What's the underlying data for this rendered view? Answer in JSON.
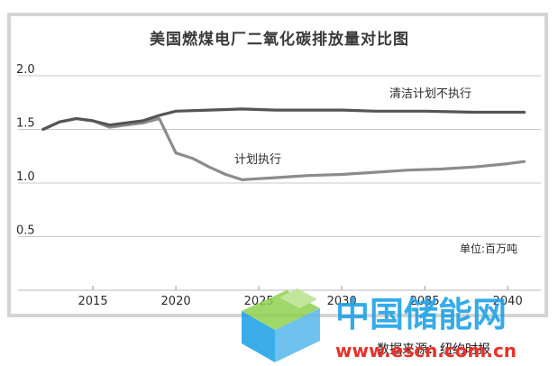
{
  "chart_data": {
    "type": "line",
    "title": "美国燃煤电厂二氧化碳排放量对比图",
    "unit_label": "单位:百万吨",
    "xlim": [
      2011.9,
      2042
    ],
    "ylim": [
      0,
      2.0
    ],
    "x_ticks": [
      {
        "value": 2015,
        "label": "2015"
      },
      {
        "value": 2020,
        "label": "2020"
      },
      {
        "value": 2025,
        "label": "2025"
      },
      {
        "value": 2030,
        "label": "2030"
      },
      {
        "value": 2035,
        "label": "2035"
      },
      {
        "value": 2040,
        "label": "2040"
      }
    ],
    "y_ticks": [
      {
        "value": 2.0,
        "label": "2.0"
      },
      {
        "value": 1.5,
        "label": "1.5"
      },
      {
        "value": 1.0,
        "label": "1.0"
      },
      {
        "value": 0.5,
        "label": "0.5"
      }
    ],
    "grid": true,
    "series": [
      {
        "name": "清洁计划不执行",
        "color": "#555555",
        "x": [
          2012,
          2013,
          2014,
          2015,
          2016,
          2017,
          2018,
          2019,
          2020,
          2022,
          2024,
          2026,
          2028,
          2030,
          2032,
          2035,
          2038,
          2041
        ],
        "y": [
          1.5,
          1.57,
          1.6,
          1.58,
          1.54,
          1.56,
          1.58,
          1.63,
          1.67,
          1.68,
          1.69,
          1.68,
          1.68,
          1.68,
          1.67,
          1.67,
          1.66,
          1.66
        ]
      },
      {
        "name": "计划执行",
        "color": "#8c8c8c",
        "x": [
          2012,
          2013,
          2014,
          2015,
          2016,
          2017,
          2018,
          2019,
          2020,
          2021,
          2022,
          2023,
          2024,
          2025,
          2026,
          2027,
          2028,
          2030,
          2032,
          2034,
          2036,
          2038,
          2040,
          2041
        ],
        "y": [
          1.5,
          1.57,
          1.6,
          1.58,
          1.52,
          1.54,
          1.56,
          1.6,
          1.28,
          1.23,
          1.15,
          1.08,
          1.03,
          1.04,
          1.05,
          1.06,
          1.07,
          1.08,
          1.1,
          1.12,
          1.13,
          1.15,
          1.18,
          1.2
        ]
      }
    ],
    "source_note": "数据来源：纽约时报",
    "watermark": {
      "text": "中国储能网",
      "url": "www.escn.com.cn",
      "colors": {
        "primary": "#1aa0e6",
        "url": "#e6322d",
        "cube_light": "#8fd14f",
        "cube_dark": "#1aa0e6"
      }
    }
  }
}
